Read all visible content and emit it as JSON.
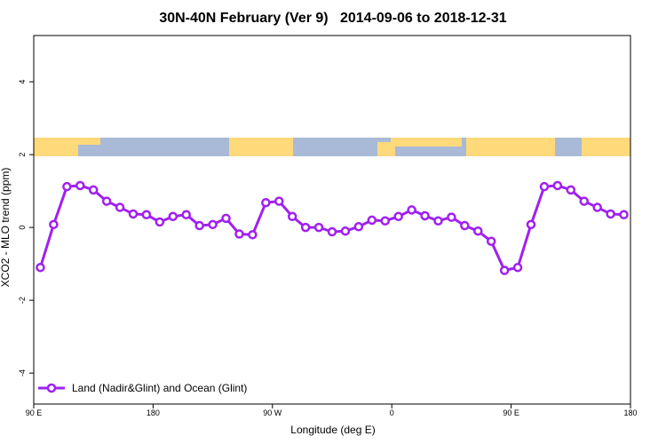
{
  "chart_data": {
    "type": "line",
    "title": "30N-40N February (Ver 9)   2014-09-06 to 2018-12-31",
    "x_label": "Longitude (deg E)",
    "y_label": "XCO2 - MLO trend (ppm)",
    "x": [
      95,
      105,
      115,
      125,
      135,
      145,
      155,
      165,
      175,
      185,
      195,
      205,
      215,
      225,
      235,
      245,
      255,
      265,
      275,
      285,
      295,
      305,
      315,
      325,
      335,
      345,
      355,
      365,
      375,
      385,
      395,
      405,
      415,
      425,
      435,
      445,
      455,
      465,
      475,
      485,
      495,
      505,
      515,
      525,
      535
    ],
    "series": [
      {
        "name": "Land (Nadir&Glint) and Ocean (Glint)",
        "color": "#a020f0",
        "values": [
          -1.1,
          0.08,
          1.12,
          1.15,
          1.03,
          0.72,
          0.55,
          0.37,
          0.35,
          0.15,
          0.3,
          0.35,
          0.05,
          0.08,
          0.25,
          -0.18,
          -0.2,
          0.68,
          0.72,
          0.3,
          0.0,
          0.0,
          -0.12,
          -0.1,
          0.02,
          0.2,
          0.18,
          0.3,
          0.48,
          0.32,
          0.18,
          0.28,
          0.05,
          -0.1,
          -0.38,
          -1.18,
          -1.1,
          0.08,
          1.12,
          1.15,
          1.03,
          0.72,
          0.55,
          0.37,
          0.35
        ]
      }
    ],
    "xlim": [
      90,
      540
    ],
    "ylim": [
      -4.85,
      5.27
    ],
    "xticks": [
      {
        "value": 90,
        "label": "90 E"
      },
      180,
      {
        "value": 270,
        "label": "90 W"
      },
      {
        "value": 360,
        "label": "0"
      },
      {
        "value": 450,
        "label": "90 E"
      },
      {
        "value": 540,
        "label": "180"
      }
    ],
    "yticks": [
      -4,
      -2,
      0,
      2,
      4
    ],
    "legend": "bottom-left"
  }
}
